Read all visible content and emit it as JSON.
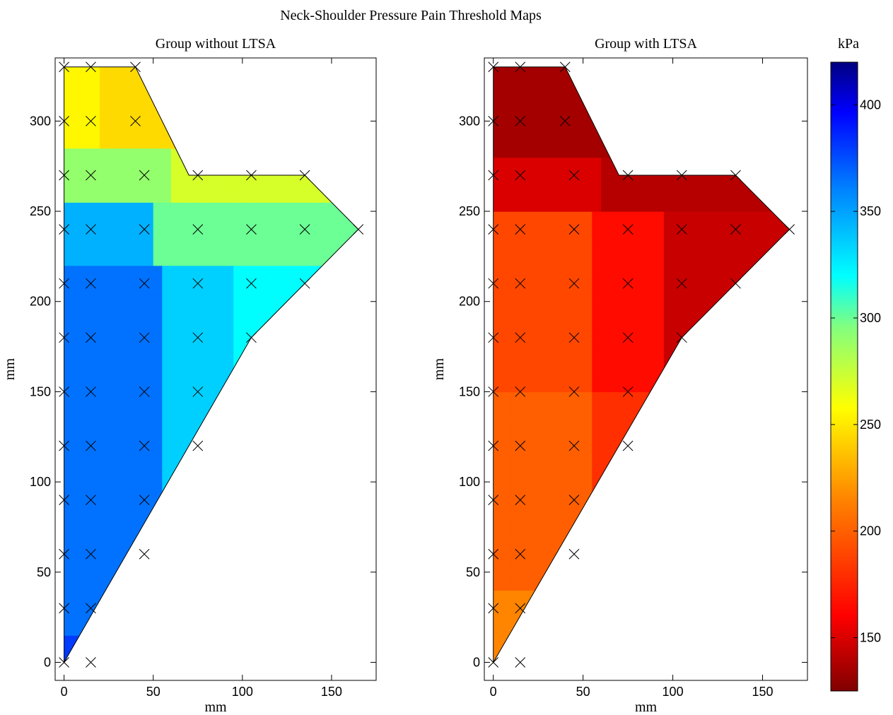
{
  "figure": {
    "title": "Neck-Shoulder Pressure Pain Threshold Maps",
    "colorbar_unit": "kPa"
  },
  "chart_data": [
    {
      "type": "heatmap",
      "title": "Group without LTSA",
      "xlabel": "mm",
      "ylabel": "mm",
      "xlim": [
        -5,
        175
      ],
      "ylim": [
        -10,
        335
      ],
      "xticks": [
        0,
        50,
        100,
        150
      ],
      "yticks": [
        0,
        50,
        100,
        150,
        200,
        250,
        300
      ],
      "measurement_points": [
        [
          0,
          330
        ],
        [
          15,
          330
        ],
        [
          40,
          330
        ],
        [
          0,
          300
        ],
        [
          15,
          300
        ],
        [
          40,
          300
        ],
        [
          0,
          270
        ],
        [
          15,
          270
        ],
        [
          45,
          270
        ],
        [
          75,
          270
        ],
        [
          105,
          270
        ],
        [
          135,
          270
        ],
        [
          0,
          240
        ],
        [
          15,
          240
        ],
        [
          45,
          240
        ],
        [
          75,
          240
        ],
        [
          105,
          240
        ],
        [
          135,
          240
        ],
        [
          165,
          240
        ],
        [
          0,
          210
        ],
        [
          15,
          210
        ],
        [
          45,
          210
        ],
        [
          75,
          210
        ],
        [
          105,
          210
        ],
        [
          135,
          210
        ],
        [
          0,
          180
        ],
        [
          15,
          180
        ],
        [
          45,
          180
        ],
        [
          75,
          180
        ],
        [
          105,
          180
        ],
        [
          0,
          150
        ],
        [
          15,
          150
        ],
        [
          45,
          150
        ],
        [
          75,
          150
        ],
        [
          0,
          120
        ],
        [
          15,
          120
        ],
        [
          45,
          120
        ],
        [
          75,
          120
        ],
        [
          0,
          90
        ],
        [
          15,
          90
        ],
        [
          45,
          90
        ],
        [
          0,
          60
        ],
        [
          15,
          60
        ],
        [
          45,
          60
        ],
        [
          0,
          30
        ],
        [
          15,
          30
        ],
        [
          0,
          0
        ],
        [
          15,
          0
        ]
      ],
      "value_bands_kPa": [
        {
          "region": "top (y 300-330)",
          "value": 240
        },
        {
          "region": "upper (y 270)",
          "value": 280
        },
        {
          "region": "y 240-270 lateral",
          "value": 270
        },
        {
          "region": "medial column (x 0-45, y 0-240)",
          "value": 360
        },
        {
          "region": "lateral (x 75-135, y 180-240)",
          "value": 320
        }
      ]
    },
    {
      "type": "heatmap",
      "title": "Group with LTSA",
      "xlabel": "mm",
      "ylabel": "mm",
      "xlim": [
        -5,
        175
      ],
      "ylim": [
        -10,
        335
      ],
      "xticks": [
        0,
        50,
        100,
        150
      ],
      "yticks": [
        0,
        50,
        100,
        150,
        200,
        250,
        300
      ],
      "measurement_points": [
        [
          0,
          330
        ],
        [
          15,
          330
        ],
        [
          40,
          330
        ],
        [
          0,
          300
        ],
        [
          15,
          300
        ],
        [
          40,
          300
        ],
        [
          0,
          270
        ],
        [
          15,
          270
        ],
        [
          45,
          270
        ],
        [
          75,
          270
        ],
        [
          105,
          270
        ],
        [
          135,
          270
        ],
        [
          0,
          240
        ],
        [
          15,
          240
        ],
        [
          45,
          240
        ],
        [
          75,
          240
        ],
        [
          105,
          240
        ],
        [
          135,
          240
        ],
        [
          165,
          240
        ],
        [
          0,
          210
        ],
        [
          15,
          210
        ],
        [
          45,
          210
        ],
        [
          75,
          210
        ],
        [
          105,
          210
        ],
        [
          135,
          210
        ],
        [
          0,
          180
        ],
        [
          15,
          180
        ],
        [
          45,
          180
        ],
        [
          75,
          180
        ],
        [
          105,
          180
        ],
        [
          0,
          150
        ],
        [
          15,
          150
        ],
        [
          45,
          150
        ],
        [
          75,
          150
        ],
        [
          0,
          120
        ],
        [
          15,
          120
        ],
        [
          45,
          120
        ],
        [
          75,
          120
        ],
        [
          0,
          90
        ],
        [
          15,
          90
        ],
        [
          45,
          90
        ],
        [
          0,
          60
        ],
        [
          15,
          60
        ],
        [
          45,
          60
        ],
        [
          0,
          30
        ],
        [
          15,
          30
        ],
        [
          0,
          0
        ],
        [
          15,
          0
        ]
      ],
      "value_bands_kPa": [
        {
          "region": "top (y 270-330)",
          "value": 140
        },
        {
          "region": "y 240-270",
          "value": 160
        },
        {
          "region": "lateral (x 75-135, y 150-240)",
          "value": 155
        },
        {
          "region": "medial column (x 0-45, y 30-240)",
          "value": 195
        },
        {
          "region": "bottom (y 0-30)",
          "value": 215
        }
      ]
    }
  ],
  "colorbar": {
    "range": [
      125,
      420
    ],
    "ticks": [
      150,
      200,
      250,
      300,
      350,
      400
    ],
    "colormap": [
      "#800000",
      "#ff0000",
      "#ff8000",
      "#ffff00",
      "#80ff80",
      "#00ffff",
      "#0080ff",
      "#0000ff",
      "#000080"
    ]
  }
}
